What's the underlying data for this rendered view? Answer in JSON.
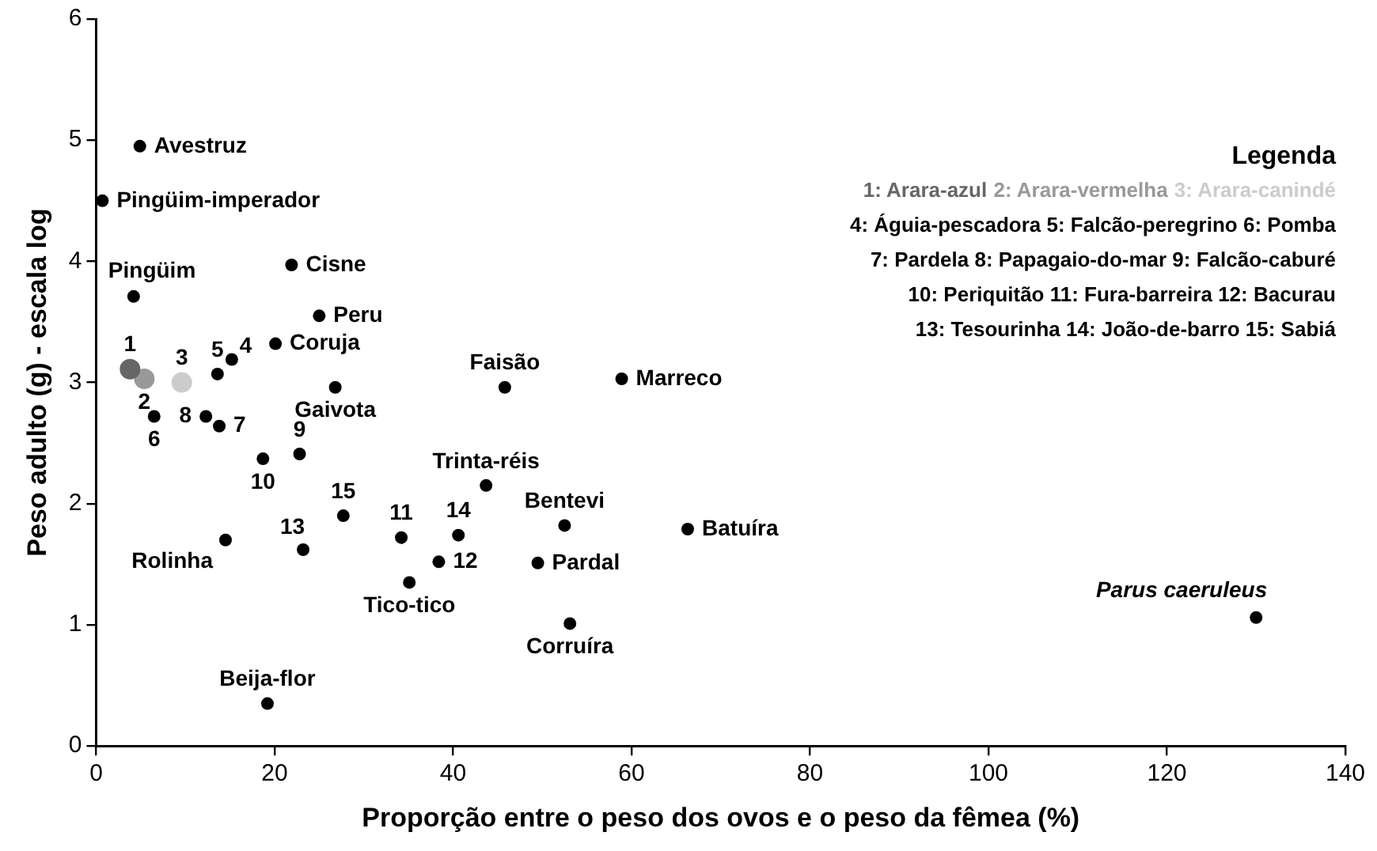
{
  "chart_data": {
    "type": "scatter",
    "xlabel": "Proporção entre o peso dos ovos e o peso da fêmea (%)",
    "ylabel": "Peso adulto (g) - escala log",
    "legend_title": "Legenda",
    "legend": "top right",
    "marker": "circle",
    "grid": false,
    "xlim": [
      0,
      140
    ],
    "xticks": [
      0,
      20,
      40,
      60,
      80,
      100,
      120,
      140
    ],
    "ylim": [
      0,
      6
    ],
    "yticks": [
      0,
      1,
      2,
      3,
      4,
      5,
      6
    ],
    "series": [
      {
        "color": "#000000",
        "x": [
          4.9,
          0.7,
          4.2,
          21.9,
          25.0,
          20.1,
          13.6,
          15.2,
          6.5,
          12.3,
          13.8,
          26.8,
          45.8,
          18.7,
          22.8,
          43.7,
          58.9,
          27.7,
          34.2,
          40.6,
          38.4,
          23.2,
          35.1,
          52.5,
          49.5,
          53.1,
          66.3,
          130.0,
          14.5,
          19.2
        ],
        "values": [
          4.95,
          4.5,
          3.71,
          3.97,
          3.55,
          3.32,
          3.07,
          3.19,
          2.72,
          2.72,
          2.64,
          2.96,
          2.96,
          2.37,
          2.41,
          2.15,
          3.03,
          1.9,
          1.72,
          1.74,
          1.52,
          1.62,
          1.35,
          1.82,
          1.51,
          1.01,
          1.79,
          1.06,
          1.7,
          0.35
        ]
      },
      {
        "name": "1: Arara-azul",
        "color": "#666666",
        "x": [
          3.8
        ],
        "values": [
          3.11
        ]
      },
      {
        "name": "2: Arara-vermelha",
        "color": "#999999",
        "x": [
          5.4
        ],
        "values": [
          3.03
        ]
      },
      {
        "name": "3: Arara-canindé",
        "color": "#cccccc",
        "x": [
          9.6
        ],
        "values": [
          3.0
        ]
      }
    ],
    "annotations": [
      "4: Águia-pescadora 5: Falcão-peregrino 6: Pomba",
      "7: Pardela 8: Papagaio-do-mar 9: Falcão-caburé",
      "10: Periquitão 11: Fura-barreira 12: Bacurau",
      "13: Tesourinha 14: João-de-barro 15: Sabiá",
      {
        "text": "Avestruz",
        "x": 4.9,
        "y": 4.95
      },
      {
        "text": "Pingüim-imperador",
        "x": 0.7,
        "y": 4.5
      },
      {
        "text": "Pingüim",
        "x": 4.2,
        "y": 3.71
      },
      {
        "text": "Cisne",
        "x": 21.9,
        "y": 3.97
      },
      {
        "text": "Peru",
        "x": 25.0,
        "y": 3.55
      },
      {
        "text": "Coruja",
        "x": 20.1,
        "y": 3.32
      },
      {
        "text": "1",
        "x": 3.8,
        "y": 3.11
      },
      {
        "text": "2",
        "x": 5.4,
        "y": 3.03
      },
      {
        "text": "3",
        "x": 9.6,
        "y": 3.0
      },
      {
        "text": "5",
        "x": 13.6,
        "y": 3.07
      },
      {
        "text": "4",
        "x": 15.2,
        "y": 3.19
      },
      {
        "text": "6",
        "x": 6.5,
        "y": 2.72
      },
      {
        "text": "8",
        "x": 12.3,
        "y": 2.72
      },
      {
        "text": "7",
        "x": 13.8,
        "y": 2.64
      },
      {
        "text": "Gaivota",
        "x": 26.8,
        "y": 2.96
      },
      {
        "text": "Faisão",
        "x": 45.8,
        "y": 2.96
      },
      {
        "text": "10",
        "x": 18.7,
        "y": 2.37
      },
      {
        "text": "9",
        "x": 22.8,
        "y": 2.41
      },
      {
        "text": "Trinta-réis",
        "x": 43.7,
        "y": 2.15
      },
      {
        "text": "Marreco",
        "x": 58.9,
        "y": 3.03
      },
      {
        "text": "15",
        "x": 27.7,
        "y": 1.9
      },
      {
        "text": "11",
        "x": 34.2,
        "y": 1.72
      },
      {
        "text": "14",
        "x": 40.6,
        "y": 1.74
      },
      {
        "text": "12",
        "x": 38.4,
        "y": 1.52
      },
      {
        "text": "13",
        "x": 23.2,
        "y": 1.62
      },
      {
        "text": "Tico-tico",
        "x": 35.1,
        "y": 1.35
      },
      {
        "text": "Bentevi",
        "x": 52.5,
        "y": 1.82
      },
      {
        "text": "Pardal",
        "x": 49.5,
        "y": 1.51
      },
      {
        "text": "Corruíra",
        "x": 53.1,
        "y": 1.01
      },
      {
        "text": "Batuíra",
        "x": 66.3,
        "y": 1.79
      },
      {
        "text": "Parus caeruleus",
        "x": 130.0,
        "y": 1.06
      },
      {
        "text": "Rolinha",
        "x": 14.5,
        "y": 1.7
      },
      {
        "text": "Beija-flor",
        "x": 19.2,
        "y": 0.35
      }
    ]
  }
}
